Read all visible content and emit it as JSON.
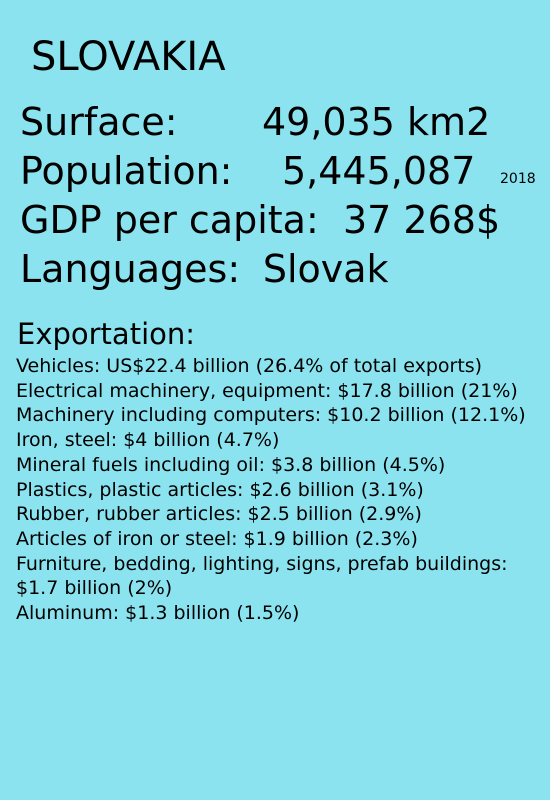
{
  "country": "SLOVAKIA",
  "facts": {
    "surface_label": "Surface:",
    "surface_value": "49,035 km2",
    "population_label": "Population:",
    "population_value": "5,445,087",
    "population_year": "2018",
    "gdp_label": "GDP per capita:",
    "gdp_value": "37 268$",
    "languages_label": "Languages:",
    "languages_value": "Slovak"
  },
  "exports": {
    "heading": "Exportation:",
    "items": [
      "Vehicles: US$22.4 billion (26.4% of total exports)",
      "Electrical machinery, equipment: $17.8 billion (21%)",
      "Machinery including computers: $10.2 billion (12.1%)",
      "Iron, steel: $4 billion (4.7%)",
      "Mineral fuels including oil: $3.8 billion (4.5%)",
      "Plastics, plastic articles: $2.6 billion (3.1%)",
      "Rubber, rubber articles: $2.5 billion (2.9%)",
      "Articles of iron or steel: $1.9 billion (2.3%)",
      "Furniture, bedding, lighting, signs, prefab buildings: $1.7 billion (2%)",
      "Aluminum: $1.3 billion (1.5%)"
    ]
  },
  "colors": {
    "background": "#8be3ef",
    "text": "#000000"
  }
}
